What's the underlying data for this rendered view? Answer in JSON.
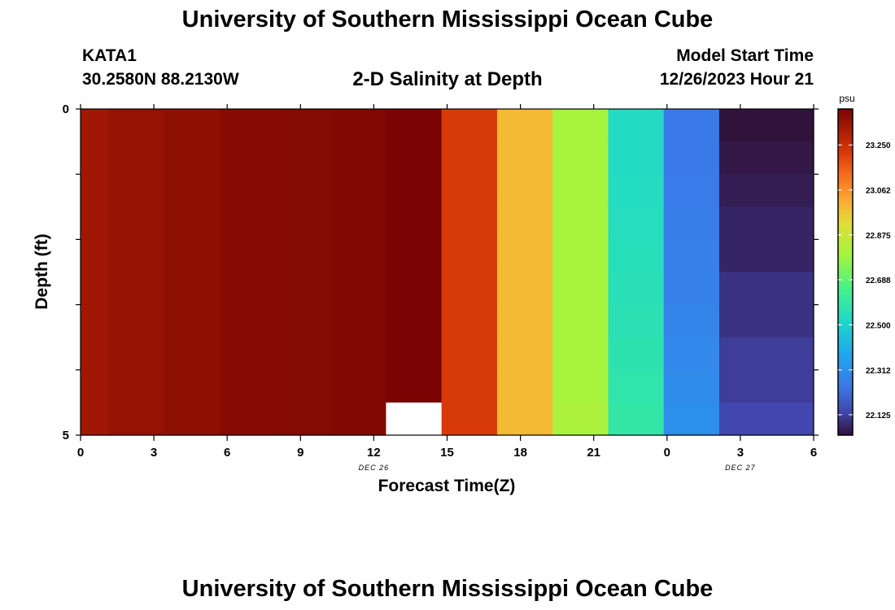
{
  "header": {
    "title": "University of Southern Mississippi Ocean Cube",
    "station": "KATA1",
    "coords": "30.2580N  88.2130W",
    "subtitle": "2-D Salinity at Depth",
    "model_start_label": "Model Start Time",
    "model_start_value": "12/26/2023 Hour 21"
  },
  "footer": {
    "title": "University of Southern Mississippi Ocean Cube"
  },
  "chart_data": {
    "type": "heatmap",
    "title": "2-D Salinity at Depth",
    "xlabel": "Forecast Time(Z)",
    "ylabel": "Depth (ft)",
    "x_tick_labels": [
      "0",
      "3",
      "6",
      "9",
      "12",
      "15",
      "18",
      "21",
      "0",
      "3",
      "6"
    ],
    "date_labels": [
      {
        "text": "DEC 26",
        "at_tick": 4
      },
      {
        "text": "DEC 27",
        "at_tick": 9
      }
    ],
    "y_tick_labels": [
      "0",
      "5"
    ],
    "xlim": [
      0,
      33
    ],
    "ylim": [
      0,
      5
    ],
    "colorbar": {
      "unit": "psu",
      "min": 22.04,
      "max": 23.4,
      "ticks": [
        "23.250",
        "23.062",
        "22.875",
        "22.688",
        "22.500",
        "22.312",
        "22.125"
      ]
    },
    "columns": [
      {
        "x_start": 0.0,
        "x_end": 1.25,
        "values": [
          23.33,
          23.33,
          23.33,
          23.33,
          23.33,
          23.33,
          23.33,
          23.33,
          23.33,
          23.33
        ]
      },
      {
        "x_start": 1.25,
        "x_end": 3.75,
        "values": [
          23.35,
          23.35,
          23.35,
          23.35,
          23.35,
          23.35,
          23.35,
          23.35,
          23.35,
          23.35
        ]
      },
      {
        "x_start": 3.75,
        "x_end": 6.25,
        "values": [
          23.36,
          23.36,
          23.36,
          23.36,
          23.36,
          23.36,
          23.36,
          23.36,
          23.36,
          23.36
        ]
      },
      {
        "x_start": 6.25,
        "x_end": 8.75,
        "values": [
          23.375,
          23.375,
          23.375,
          23.375,
          23.375,
          23.375,
          23.375,
          23.375,
          23.375,
          23.375
        ]
      },
      {
        "x_start": 8.75,
        "x_end": 11.25,
        "values": [
          23.38,
          23.38,
          23.38,
          23.38,
          23.38,
          23.38,
          23.38,
          23.38,
          23.38,
          23.38
        ]
      },
      {
        "x_start": 11.25,
        "x_end": 13.75,
        "values": [
          23.385,
          23.385,
          23.385,
          23.385,
          23.385,
          23.385,
          23.385,
          23.385,
          23.385,
          23.385
        ]
      },
      {
        "x_start": 13.75,
        "x_end": 16.25,
        "values": [
          23.4,
          23.4,
          23.4,
          23.4,
          23.4,
          23.4,
          23.4,
          23.4,
          23.4,
          null
        ]
      },
      {
        "x_start": 16.25,
        "x_end": 18.75,
        "values": [
          23.22,
          23.22,
          23.22,
          23.22,
          23.22,
          23.22,
          23.22,
          23.22,
          23.22,
          23.22
        ]
      },
      {
        "x_start": 18.75,
        "x_end": 21.25,
        "values": [
          22.99,
          22.99,
          22.99,
          22.99,
          22.99,
          22.99,
          22.99,
          22.99,
          22.99,
          22.99
        ]
      },
      {
        "x_start": 21.25,
        "x_end": 23.75,
        "values": [
          22.8,
          22.8,
          22.8,
          22.8,
          22.8,
          22.8,
          22.8,
          22.8,
          22.8,
          22.81
        ]
      },
      {
        "x_start": 23.75,
        "x_end": 26.25,
        "values": [
          22.53,
          22.53,
          22.535,
          22.54,
          22.545,
          22.55,
          22.56,
          22.57,
          22.58,
          22.59
        ]
      },
      {
        "x_start": 26.25,
        "x_end": 28.75,
        "values": [
          22.25,
          22.25,
          22.255,
          22.26,
          22.265,
          22.27,
          22.28,
          22.29,
          22.3,
          22.31
        ]
      },
      {
        "x_start": 28.75,
        "x_end": 33.0,
        "values": [
          22.04,
          22.05,
          22.06,
          22.075,
          22.075,
          22.1,
          22.1,
          22.12,
          22.12,
          22.14
        ]
      }
    ]
  }
}
